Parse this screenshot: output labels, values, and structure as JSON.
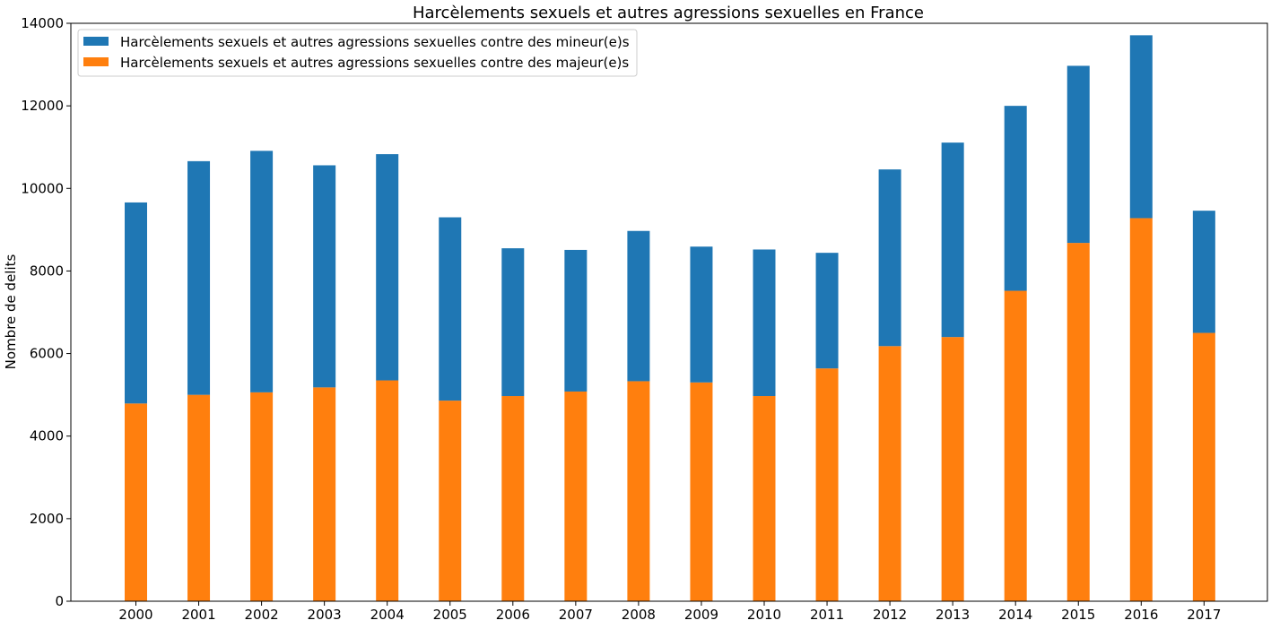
{
  "chart_data": {
    "type": "bar",
    "stacked": true,
    "title": "Harcèlements sexuels et autres agressions sexuelles en France",
    "xlabel": "",
    "ylabel": "Nombre de delits",
    "ylim": [
      0,
      14000
    ],
    "yticks": [
      0,
      2000,
      4000,
      6000,
      8000,
      10000,
      12000,
      14000
    ],
    "grid": false,
    "legend_position": "top-left",
    "categories": [
      "2000",
      "2001",
      "2002",
      "2003",
      "2004",
      "2005",
      "2006",
      "2007",
      "2008",
      "2009",
      "2010",
      "2011",
      "2012",
      "2013",
      "2014",
      "2015",
      "2016",
      "2017"
    ],
    "series": [
      {
        "name": "Harcèlements sexuels et autres agressions sexuelles contre des majeur(e)s",
        "color": "#ff7f0e",
        "values": [
          4790,
          5000,
          5060,
          5180,
          5350,
          4860,
          4970,
          5080,
          5330,
          5300,
          4970,
          5640,
          6180,
          6400,
          7520,
          8680,
          9280,
          6500
        ]
      },
      {
        "name": "Harcèlements sexuels et autres agressions sexuelles contre des mineur(e)s",
        "color": "#1f77b4",
        "values": [
          4870,
          5660,
          5850,
          5380,
          5480,
          4440,
          3580,
          3430,
          3640,
          3290,
          3550,
          2800,
          4280,
          4710,
          4480,
          4290,
          4430,
          2960
        ]
      }
    ],
    "legend_order": [
      1,
      0
    ]
  }
}
